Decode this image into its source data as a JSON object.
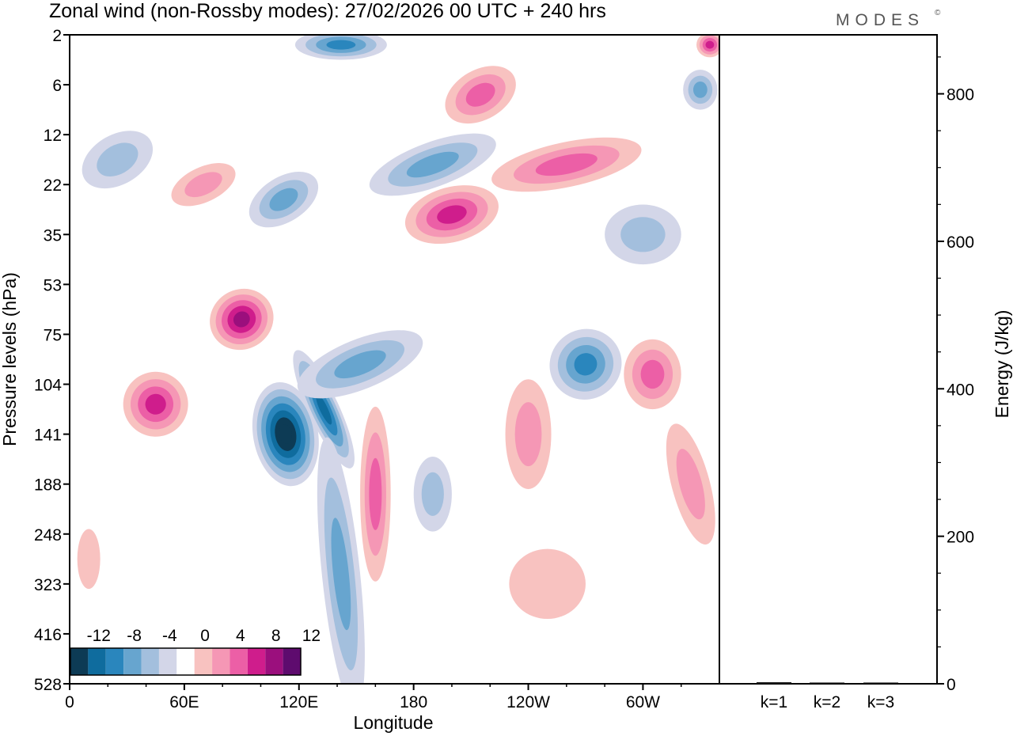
{
  "chart_data": {
    "type": "heatmap",
    "title": "Zonal wind (non-Rossby modes):  27/02/2026  00 UTC  + 240 hrs",
    "logo_text": "MODES",
    "logo_mark": "©",
    "xlabel": "Longitude",
    "ylabel": "Pressure levels (hPa)",
    "right_ylabel": "Energy (J/kg)",
    "x_ticks": [
      {
        "lon": 0,
        "label": "0"
      },
      {
        "lon": 60,
        "label": "60E"
      },
      {
        "lon": 120,
        "label": "120E"
      },
      {
        "lon": 180,
        "label": "180"
      },
      {
        "lon": 240,
        "label": "120W"
      },
      {
        "lon": 300,
        "label": "60W"
      }
    ],
    "xlim": [
      0,
      340
    ],
    "pressure_levels": [
      "2",
      "6",
      "12",
      "22",
      "35",
      "53",
      "75",
      "104",
      "141",
      "188",
      "248",
      "323",
      "416",
      "528"
    ],
    "colorbar": {
      "labels": [
        "-12",
        "-8",
        "-4",
        "0",
        "4",
        "8",
        "12"
      ],
      "levels": [
        -14,
        -12,
        -10,
        -8,
        -6,
        -4,
        -2,
        2,
        4,
        6,
        8,
        10,
        12,
        14
      ],
      "colors": [
        "#0d3b55",
        "#0f6c9e",
        "#2a86bd",
        "#67a5cf",
        "#a3bfdd",
        "#d3d6e8",
        "#ffffff",
        "#f8c2c0",
        "#f597b5",
        "#ec5fa6",
        "#cf1d8c",
        "#9b0f7d",
        "#5e0b6e"
      ]
    },
    "features": [
      {
        "lon": 113,
        "level_index": 8.0,
        "value": -14,
        "width_deg": 34,
        "height_levels": 2.1,
        "tilt_deg": -10
      },
      {
        "lon": 133,
        "level_index": 7.5,
        "value": -11,
        "width_deg": 16,
        "height_levels": 2.6,
        "tilt_deg": -25
      },
      {
        "lon": 142,
        "level_index": 10.8,
        "value": -6,
        "width_deg": 20,
        "height_levels": 5.5,
        "tilt_deg": -6
      },
      {
        "lon": 152,
        "level_index": 6.6,
        "value": -7,
        "width_deg": 70,
        "height_levels": 1.0,
        "tilt_deg": -22
      },
      {
        "lon": 142,
        "level_index": 0.2,
        "value": -8,
        "width_deg": 48,
        "height_levels": 0.6,
        "tilt_deg": 0
      },
      {
        "lon": 112,
        "level_index": 3.3,
        "value": -7,
        "width_deg": 40,
        "height_levels": 0.9,
        "tilt_deg": -32
      },
      {
        "lon": 190,
        "level_index": 2.6,
        "value": -6,
        "width_deg": 70,
        "height_levels": 0.9,
        "tilt_deg": -20
      },
      {
        "lon": 270,
        "level_index": 6.6,
        "value": -8,
        "width_deg": 38,
        "height_levels": 1.4,
        "tilt_deg": -30
      },
      {
        "lon": 330,
        "level_index": 1.1,
        "value": -6,
        "width_deg": 18,
        "height_levels": 0.8,
        "tilt_deg": 0
      },
      {
        "lon": 25,
        "level_index": 2.5,
        "value": -4,
        "width_deg": 40,
        "height_levels": 1.0,
        "tilt_deg": -30
      },
      {
        "lon": 300,
        "level_index": 4.0,
        "value": -4,
        "width_deg": 40,
        "height_levels": 1.2,
        "tilt_deg": 0
      },
      {
        "lon": 190,
        "level_index": 9.2,
        "value": -4,
        "width_deg": 20,
        "height_levels": 1.5,
        "tilt_deg": 0
      },
      {
        "lon": 45,
        "level_index": 7.4,
        "value": 9,
        "width_deg": 34,
        "height_levels": 1.3,
        "tilt_deg": -30
      },
      {
        "lon": 90,
        "level_index": 5.7,
        "value": 10,
        "width_deg": 34,
        "height_levels": 1.2,
        "tilt_deg": -30
      },
      {
        "lon": 200,
        "level_index": 3.6,
        "value": 9,
        "width_deg": 50,
        "height_levels": 1.1,
        "tilt_deg": -15
      },
      {
        "lon": 260,
        "level_index": 2.6,
        "value": 6,
        "width_deg": 80,
        "height_levels": 0.9,
        "tilt_deg": -12
      },
      {
        "lon": 160,
        "level_index": 9.2,
        "value": 6,
        "width_deg": 16,
        "height_levels": 3.5,
        "tilt_deg": 0
      },
      {
        "lon": 240,
        "level_index": 8.0,
        "value": 5,
        "width_deg": 24,
        "height_levels": 2.2,
        "tilt_deg": 0
      },
      {
        "lon": 305,
        "level_index": 6.8,
        "value": 6,
        "width_deg": 30,
        "height_levels": 1.4,
        "tilt_deg": 0
      },
      {
        "lon": 325,
        "level_index": 9.0,
        "value": 5,
        "width_deg": 20,
        "height_levels": 2.5,
        "tilt_deg": -15
      },
      {
        "lon": 215,
        "level_index": 1.2,
        "value": 7,
        "width_deg": 40,
        "height_levels": 1.0,
        "tilt_deg": -30
      },
      {
        "lon": 250,
        "level_index": 11.0,
        "value": 3,
        "width_deg": 40,
        "height_levels": 1.4,
        "tilt_deg": 0
      },
      {
        "lon": 10,
        "level_index": 10.5,
        "value": 3,
        "width_deg": 12,
        "height_levels": 1.2,
        "tilt_deg": 0
      },
      {
        "lon": 70,
        "level_index": 3.0,
        "value": 5,
        "width_deg": 36,
        "height_levels": 0.7,
        "tilt_deg": -25
      },
      {
        "lon": 335,
        "level_index": 0.2,
        "value": 8,
        "width_deg": 14,
        "height_levels": 0.5,
        "tilt_deg": 0
      }
    ]
  },
  "energy_panel": {
    "ylim": [
      0,
      880
    ],
    "y_ticks": [
      "0",
      "200",
      "400",
      "600",
      "800"
    ],
    "categories": [
      "k=1",
      "k=2",
      "k=3"
    ],
    "values": [
      2,
      1,
      1
    ]
  }
}
